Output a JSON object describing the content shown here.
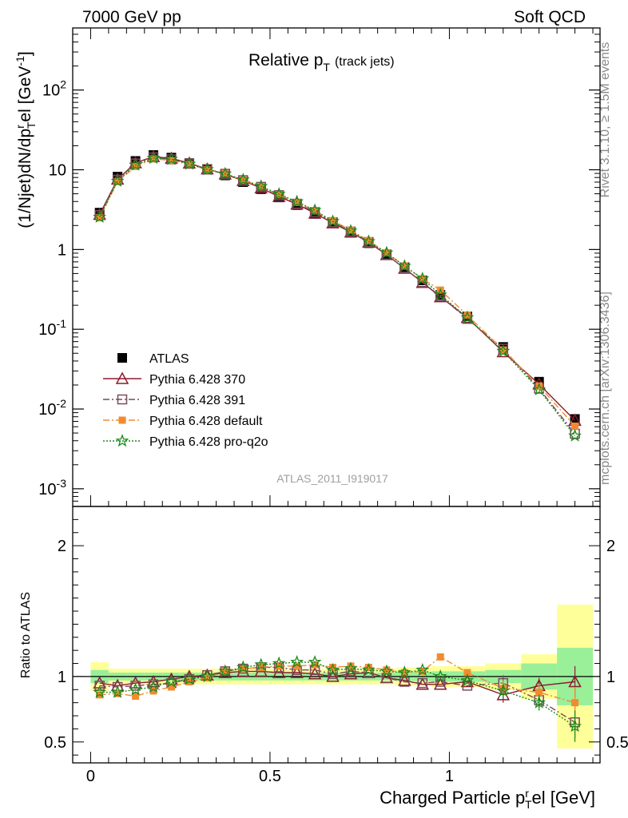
{
  "header": {
    "left": "7000 GeV pp",
    "right": "Soft QCD"
  },
  "side_labels": {
    "rivet": "Rivet 3.1.10, ≥ 1.5M events",
    "mcplots": "mcplots.cern.ch [arXiv:1306.3436]"
  },
  "chart_data": [
    {
      "type": "line",
      "panel": "main",
      "title_main": "Relative p",
      "title_sub": "T",
      "title_paren": "(track jets)",
      "ylabel": "(1/Njet)dN/dp",
      "ylabel_sup": "r",
      "ylabel_sub": "T",
      "ylabel_tail": "el [GeV",
      "ylabel_tail_sup": "-1",
      "ylabel_close": "]",
      "yscale": "log",
      "ylim": [
        0.0006,
        600
      ],
      "xlim": [
        -0.05,
        1.42
      ],
      "yticks": [
        {
          "v": 0.001,
          "base": "10",
          "exp": "-3"
        },
        {
          "v": 0.01,
          "base": "10",
          "exp": "-2"
        },
        {
          "v": 0.1,
          "base": "10",
          "exp": "-1"
        },
        {
          "v": 1,
          "base": "1",
          "exp": ""
        },
        {
          "v": 10,
          "base": "10",
          "exp": ""
        },
        {
          "v": 100,
          "base": "10",
          "exp": "2"
        }
      ],
      "watermark": "ATLAS_2011_I919017",
      "x": [
        0.025,
        0.075,
        0.125,
        0.175,
        0.225,
        0.275,
        0.325,
        0.375,
        0.425,
        0.475,
        0.525,
        0.575,
        0.625,
        0.675,
        0.725,
        0.775,
        0.825,
        0.875,
        0.925,
        0.975,
        1.05,
        1.15,
        1.25,
        1.35
      ],
      "legend_placement": "bottom-left",
      "series": [
        {
          "name": "ATLAS",
          "color": "#000000",
          "marker": "square",
          "style": "none",
          "values": [
            2.9,
            8.2,
            12.9,
            15.3,
            14.2,
            12.1,
            10.1,
            8.5,
            7.0,
            5.7,
            4.5,
            3.6,
            2.8,
            2.15,
            1.62,
            1.2,
            0.87,
            0.6,
            0.41,
            0.27,
            0.145,
            0.06,
            0.022,
            0.0075
          ]
        },
        {
          "name": "Pythia 6.428 370",
          "color": "#8b1a2e",
          "marker": "triangle",
          "style": "solid",
          "values": [
            2.75,
            7.6,
            12.2,
            14.6,
            13.9,
            12.1,
            10.2,
            8.8,
            7.3,
            5.9,
            4.6,
            3.7,
            2.85,
            2.15,
            1.65,
            1.23,
            0.86,
            0.58,
            0.385,
            0.255,
            0.14,
            0.052,
            0.0205,
            0.0072
          ]
        },
        {
          "name": "Pythia 6.428 391",
          "color": "#7a4a5e",
          "marker": "open-square",
          "style": "dashdot",
          "values": [
            2.7,
            7.5,
            12.0,
            14.3,
            13.5,
            11.9,
            10.2,
            8.9,
            7.4,
            6.1,
            4.8,
            3.75,
            2.95,
            2.2,
            1.68,
            1.24,
            0.86,
            0.58,
            0.39,
            0.26,
            0.135,
            0.057,
            0.018,
            0.0049
          ]
        },
        {
          "name": "Pythia 6.428 default",
          "color": "#f28b30",
          "marker": "filled-square",
          "style": "dashdot",
          "values": [
            2.5,
            7.1,
            11.0,
            13.7,
            13.1,
            11.7,
            10.0,
            8.9,
            7.4,
            6.1,
            4.85,
            3.9,
            3.05,
            2.3,
            1.75,
            1.29,
            0.91,
            0.62,
            0.43,
            0.31,
            0.15,
            0.055,
            0.0195,
            0.0061
          ]
        },
        {
          "name": "Pythia 6.428 pro-q2o",
          "color": "#1a8a1a",
          "marker": "star",
          "style": "dotted",
          "values": [
            2.55,
            7.2,
            11.5,
            14.0,
            13.6,
            11.8,
            10.1,
            8.9,
            7.5,
            6.2,
            4.95,
            3.98,
            3.1,
            2.25,
            1.71,
            1.26,
            0.91,
            0.62,
            0.43,
            0.27,
            0.14,
            0.053,
            0.0175,
            0.0046
          ]
        }
      ]
    },
    {
      "type": "line",
      "panel": "ratio",
      "ylabel": "Ratio to ATLAS",
      "ylim": [
        0.34,
        2.3
      ],
      "xlim": [
        -0.05,
        1.42
      ],
      "yticks": [
        0.5,
        1,
        2
      ],
      "ytick_labels": [
        "0.5",
        "1",
        "2"
      ],
      "xticks": [
        0,
        0.5,
        1
      ],
      "xtick_labels": [
        "0",
        "0.5",
        "1"
      ],
      "xlabel": "Charged Particle p",
      "xlabel_sup": "r",
      "xlabel_sub": "T",
      "xlabel_tail": "el [GeV]",
      "bands": {
        "bins": [
          [
            0.0,
            0.05
          ],
          [
            0.05,
            0.1
          ],
          [
            0.1,
            0.15
          ],
          [
            0.15,
            0.2
          ],
          [
            0.2,
            0.25
          ],
          [
            0.25,
            0.3
          ],
          [
            0.3,
            0.35
          ],
          [
            0.35,
            0.4
          ],
          [
            0.4,
            0.45
          ],
          [
            0.45,
            0.5
          ],
          [
            0.5,
            0.55
          ],
          [
            0.55,
            0.6
          ],
          [
            0.6,
            0.65
          ],
          [
            0.65,
            0.7
          ],
          [
            0.7,
            0.75
          ],
          [
            0.75,
            0.8
          ],
          [
            0.8,
            0.85
          ],
          [
            0.85,
            0.9
          ],
          [
            0.9,
            0.95
          ],
          [
            0.95,
            1.0
          ],
          [
            1.0,
            1.1
          ],
          [
            1.1,
            1.2
          ],
          [
            1.2,
            1.3
          ],
          [
            1.3,
            1.4
          ]
        ],
        "stat_half_width": [
          0.05,
          0.03,
          0.03,
          0.03,
          0.03,
          0.03,
          0.03,
          0.03,
          0.03,
          0.03,
          0.03,
          0.03,
          0.03,
          0.03,
          0.03,
          0.03,
          0.03,
          0.035,
          0.035,
          0.04,
          0.04,
          0.05,
          0.1,
          0.22
        ],
        "total_half_width": [
          0.11,
          0.06,
          0.06,
          0.06,
          0.06,
          0.06,
          0.06,
          0.06,
          0.06,
          0.06,
          0.06,
          0.06,
          0.06,
          0.06,
          0.06,
          0.06,
          0.06,
          0.07,
          0.07,
          0.08,
          0.08,
          0.1,
          0.17,
          0.55
        ],
        "inner_color": "#99f099",
        "outer_color": "#ffff99"
      },
      "series": [
        {
          "name": "Pythia 6.428 370",
          "color": "#8b1a2e",
          "marker": "triangle",
          "style": "solid",
          "values": [
            0.95,
            0.93,
            0.95,
            0.96,
            0.98,
            1.0,
            1.01,
            1.03,
            1.04,
            1.04,
            1.03,
            1.03,
            1.02,
            1.0,
            1.02,
            1.03,
            0.99,
            0.97,
            0.94,
            0.94,
            0.96,
            0.86,
            0.93,
            0.96
          ]
        },
        {
          "name": "Pythia 6.428 391",
          "color": "#7a4a5e",
          "marker": "open-square",
          "style": "dashdot",
          "values": [
            0.93,
            0.92,
            0.93,
            0.94,
            0.95,
            0.98,
            1.01,
            1.04,
            1.06,
            1.07,
            1.07,
            1.05,
            1.05,
            1.02,
            1.04,
            1.03,
            0.99,
            0.96,
            0.95,
            0.96,
            0.93,
            0.95,
            0.82,
            0.65
          ]
        },
        {
          "name": "Pythia 6.428 default",
          "color": "#f28b30",
          "marker": "filled-square",
          "style": "dashdot",
          "values": [
            0.86,
            0.87,
            0.85,
            0.89,
            0.92,
            0.96,
            0.99,
            1.04,
            1.06,
            1.07,
            1.08,
            1.08,
            1.09,
            1.07,
            1.08,
            1.07,
            1.05,
            1.03,
            1.04,
            1.15,
            1.03,
            0.91,
            0.88,
            0.8
          ]
        },
        {
          "name": "Pythia 6.428 pro-q2o",
          "color": "#1a8a1a",
          "marker": "star",
          "style": "dotted",
          "values": [
            0.88,
            0.88,
            0.9,
            0.92,
            0.96,
            0.98,
            1.0,
            1.04,
            1.07,
            1.09,
            1.1,
            1.11,
            1.11,
            1.05,
            1.06,
            1.05,
            1.04,
            1.03,
            1.05,
            1.0,
            0.97,
            0.89,
            0.8,
            0.62
          ]
        }
      ]
    }
  ]
}
